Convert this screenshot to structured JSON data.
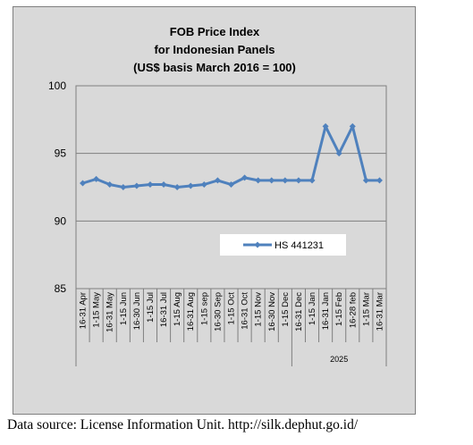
{
  "chart_data": {
    "type": "line",
    "title_lines": [
      "FOB Price Index",
      "for Indonesian Panels",
      "(US$ basis March 2016 = 100)"
    ],
    "categories": [
      "16-31 Apr",
      "1-15 May",
      "16-31 May",
      "1-15 Jun",
      "16-30 Jun",
      "1-15 Jul",
      "16-31 Jul",
      "1-15 Aug",
      "16-31 Aug",
      "1-15 sep",
      "16-30 Sep",
      "1-15 Oct",
      "16-31 Oct",
      "1-15 Nov",
      "16-30 Nov",
      "1-15 Dec",
      "16-31 Dec",
      "1-15 Jan",
      "16-31 Jan",
      "1-15 Feb",
      "16-28 feb",
      "1-15 Mar",
      "16-31 Mar"
    ],
    "category_group": {
      "label": "2025",
      "start_index": 16,
      "end_index": 22
    },
    "series": [
      {
        "name": "HS 441231",
        "color": "#4f81bd",
        "values": [
          92.8,
          93.1,
          92.7,
          92.5,
          92.6,
          92.7,
          92.7,
          92.5,
          92.6,
          92.7,
          93.0,
          92.7,
          93.2,
          93.0,
          93.0,
          93.0,
          93.0,
          93.0,
          97.0,
          95.0,
          97.0,
          93.0,
          93.0
        ]
      }
    ],
    "yticks": [
      "100",
      "95",
      "90",
      "85"
    ],
    "ylim": [
      85,
      100
    ],
    "grid": "horizontal",
    "legend": "inside-lower-right"
  },
  "source_text": "Data source: License Information Unit. http://silk.dephut.go.id/"
}
